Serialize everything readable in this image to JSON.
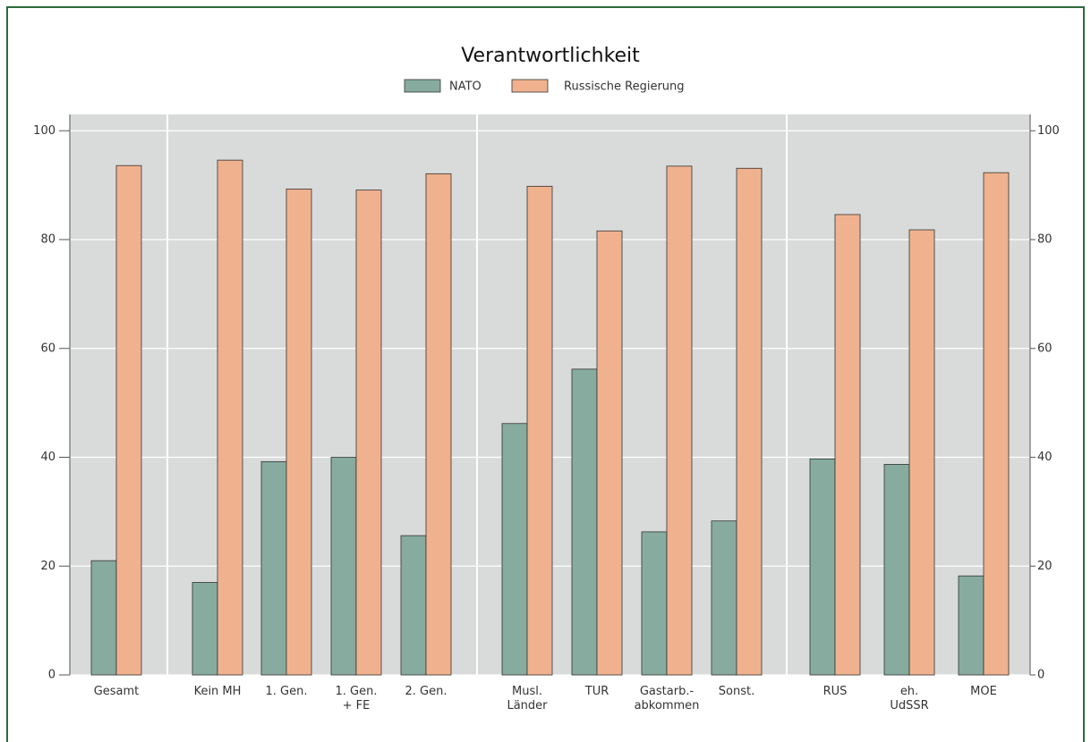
{
  "chart_data": {
    "type": "bar",
    "title": "Verantwortlichkeit",
    "categories": [
      "Gesamt",
      "Kein MH",
      "1. Gen.",
      "1. Gen.\n+ FE",
      "2. Gen.",
      "Musl.\nLänder",
      "TUR",
      "Gastarb.-\nabkommen",
      "Sonst.",
      "RUS",
      "eh.\nUdSSR",
      "MOE"
    ],
    "series": [
      {
        "name": "NATO",
        "color": "#87ab9f",
        "values": [
          21,
          17,
          39.2,
          40,
          25.6,
          46.2,
          56.2,
          26.3,
          28.3,
          39.7,
          38.7,
          18.2
        ]
      },
      {
        "name": "Russische Regierung",
        "color": "#f0b28e",
        "values": [
          93.6,
          94.6,
          89.3,
          89.1,
          92.1,
          89.8,
          81.6,
          93.5,
          93.1,
          84.6,
          81.8,
          92.3
        ]
      }
    ],
    "ylim": [
      0,
      103
    ],
    "yticks": [
      0,
      20,
      40,
      60,
      80,
      100
    ],
    "y2lim": [
      0,
      103
    ],
    "y2ticks": [
      0,
      20,
      40,
      60,
      80,
      100
    ],
    "grid": true
  }
}
